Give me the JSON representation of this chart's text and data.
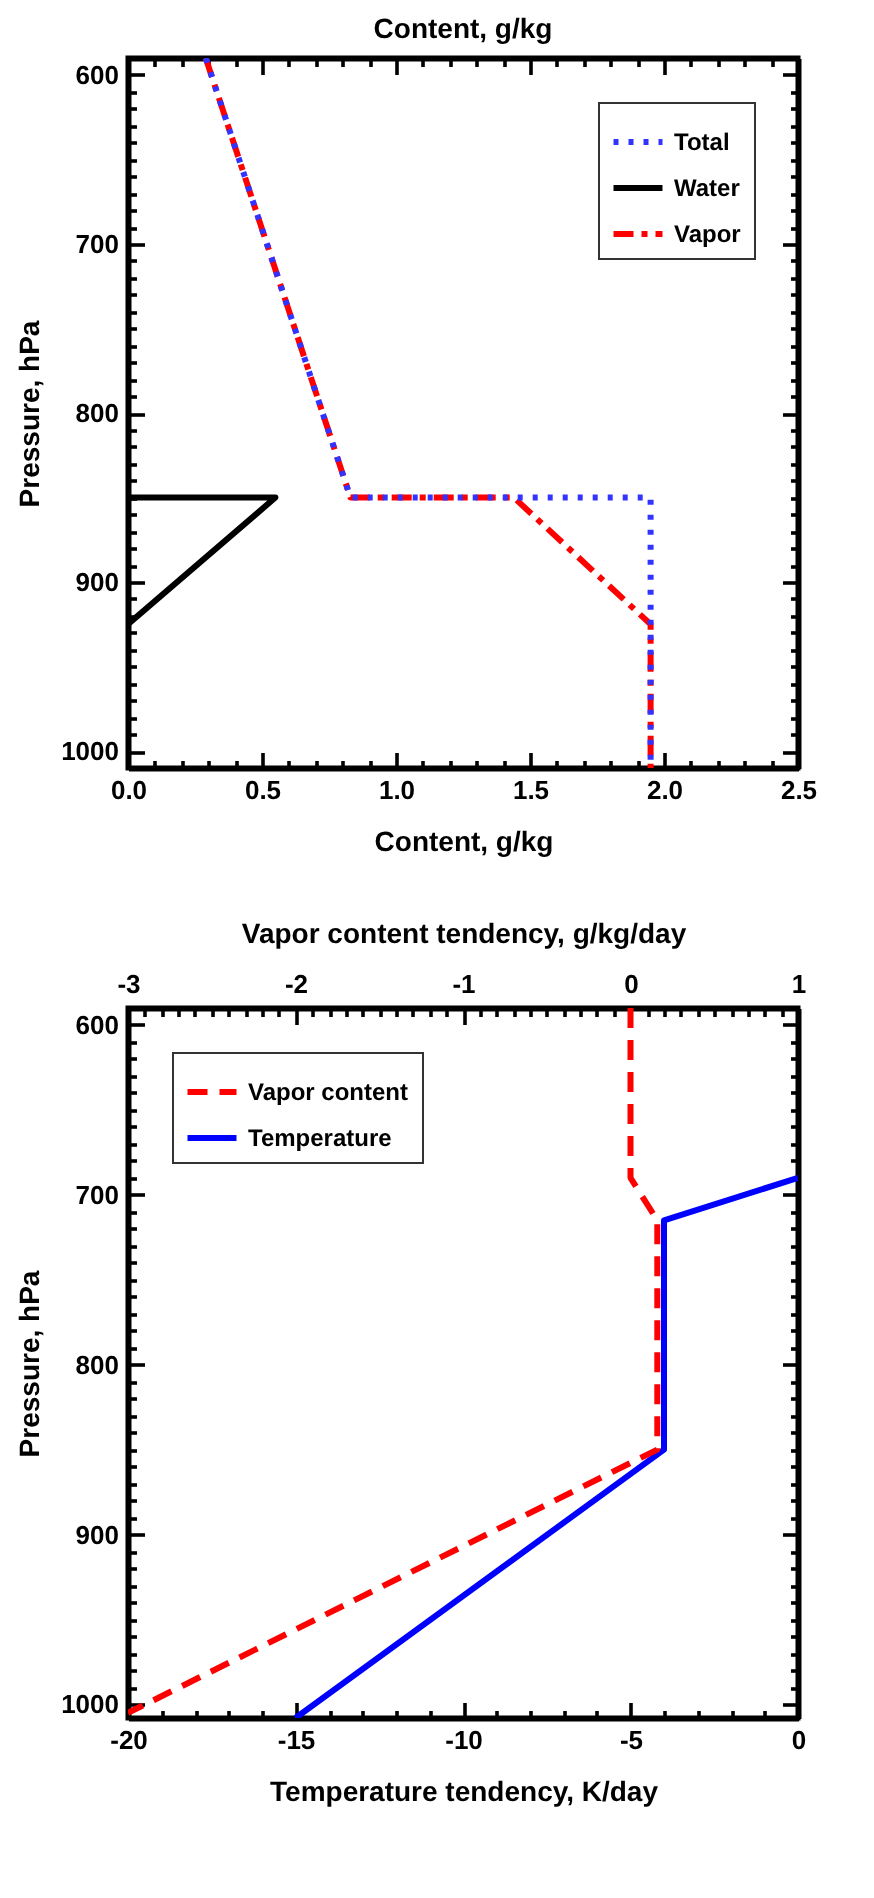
{
  "chart_data": [
    {
      "type": "line",
      "title": "Content, g/kg",
      "xlabel": "Content, g/kg",
      "ylabel": "Pressure, hPa",
      "legend": "top right",
      "xlim": [
        0,
        2.5
      ],
      "xticks": [
        {
          "value": 0,
          "label": "0.0"
        },
        {
          "value": 0.1,
          "label": null
        },
        {
          "value": 0.2,
          "label": null
        },
        {
          "value": 0.3,
          "label": null
        },
        {
          "value": 0.4,
          "label": null
        },
        0.5,
        {
          "value": 0.6,
          "label": null
        },
        {
          "value": 0.7,
          "label": null
        },
        {
          "value": 0.8,
          "label": null
        },
        {
          "value": 0.9,
          "label": null
        },
        {
          "value": 1,
          "label": "1.0"
        },
        {
          "value": 1.1,
          "label": null
        },
        {
          "value": 1.2,
          "label": null
        },
        {
          "value": 1.3,
          "label": null
        },
        {
          "value": 1.4,
          "label": null
        },
        1.5,
        {
          "value": 1.6,
          "label": null
        },
        {
          "value": 1.7,
          "label": null
        },
        {
          "value": 1.8,
          "label": null
        },
        {
          "value": 1.9,
          "label": null
        },
        {
          "value": 2,
          "label": "2.0"
        },
        {
          "value": 2.1,
          "label": null
        },
        {
          "value": 2.2,
          "label": null
        },
        {
          "value": 2.3,
          "label": null
        },
        {
          "value": 2.4,
          "label": null
        },
        2.5
      ],
      "ylim": [
        1010,
        590
      ],
      "yticks": [
        600,
        {
          "value": 610,
          "label": null
        },
        {
          "value": 620,
          "label": null
        },
        {
          "value": 630,
          "label": null
        },
        {
          "value": 640,
          "label": null
        },
        {
          "value": 650,
          "label": null
        },
        {
          "value": 660,
          "label": null
        },
        {
          "value": 670,
          "label": null
        },
        {
          "value": 680,
          "label": null
        },
        {
          "value": 690,
          "label": null
        },
        700,
        {
          "value": 710,
          "label": null
        },
        {
          "value": 720,
          "label": null
        },
        {
          "value": 730,
          "label": null
        },
        {
          "value": 740,
          "label": null
        },
        {
          "value": 750,
          "label": null
        },
        {
          "value": 760,
          "label": null
        },
        {
          "value": 770,
          "label": null
        },
        {
          "value": 780,
          "label": null
        },
        {
          "value": 790,
          "label": null
        },
        800,
        {
          "value": 810,
          "label": null
        },
        {
          "value": 820,
          "label": null
        },
        {
          "value": 830,
          "label": null
        },
        {
          "value": 840,
          "label": null
        },
        {
          "value": 850,
          "label": null
        },
        {
          "value": 860,
          "label": null
        },
        {
          "value": 870,
          "label": null
        },
        {
          "value": 880,
          "label": null
        },
        {
          "value": 890,
          "label": null
        },
        900,
        {
          "value": 910,
          "label": null
        },
        {
          "value": 920,
          "label": null
        },
        {
          "value": 930,
          "label": null
        },
        {
          "value": 940,
          "label": null
        },
        {
          "value": 950,
          "label": null
        },
        {
          "value": 960,
          "label": null
        },
        {
          "value": 970,
          "label": null
        },
        {
          "value": 980,
          "label": null
        },
        {
          "value": 990,
          "label": null
        },
        1000
      ],
      "series": [
        {
          "name": "Total",
          "color": "#3333ff",
          "line_style": "dotted",
          "x": [
            0.29,
            0.83,
            1.95,
            1.95
          ],
          "values": [
            590,
            850,
            850,
            1010
          ]
        },
        {
          "name": "Water",
          "color": "#000000",
          "line_style": "solid",
          "x": [
            0,
            0.55,
            0
          ],
          "values": [
            850,
            850,
            925
          ]
        },
        {
          "name": "Vapor",
          "color": "#ff0000",
          "line_style": "dashdot",
          "x": [
            0.29,
            0.83,
            1.44,
            1.95,
            1.95
          ],
          "values": [
            590,
            850,
            850,
            925,
            1010
          ]
        }
      ]
    },
    {
      "type": "line",
      "xlabel": "Temperature tendency, K/day",
      "x2label": "Vapor content tendency, g/kg/day",
      "ylabel": "Pressure, hPa",
      "legend": "top left",
      "xlim": [
        -20,
        0
      ],
      "xticks": [
        -20,
        {
          "value": -19,
          "label": null
        },
        {
          "value": -18,
          "label": null
        },
        {
          "value": -17,
          "label": null
        },
        {
          "value": -16,
          "label": null
        },
        -15,
        {
          "value": -14,
          "label": null
        },
        {
          "value": -13,
          "label": null
        },
        {
          "value": -12,
          "label": null
        },
        {
          "value": -11,
          "label": null
        },
        -10,
        {
          "value": -9,
          "label": null
        },
        {
          "value": -8,
          "label": null
        },
        {
          "value": -7,
          "label": null
        },
        {
          "value": -6,
          "label": null
        },
        -5,
        {
          "value": -4,
          "label": null
        },
        {
          "value": -3,
          "label": null
        },
        {
          "value": -2,
          "label": null
        },
        {
          "value": -1,
          "label": null
        },
        0
      ],
      "x2lim": [
        -3,
        1
      ],
      "x2ticks": [
        -3,
        {
          "value": -2.9,
          "label": null
        },
        {
          "value": -2.8,
          "label": null
        },
        {
          "value": -2.7,
          "label": null
        },
        {
          "value": -2.6,
          "label": null
        },
        {
          "value": -2.5,
          "label": null
        },
        {
          "value": -2.4,
          "label": null
        },
        {
          "value": -2.3,
          "label": null
        },
        {
          "value": -2.2,
          "label": null
        },
        {
          "value": -2.1,
          "label": null
        },
        -2,
        {
          "value": -1.9,
          "label": null
        },
        {
          "value": -1.8,
          "label": null
        },
        {
          "value": -1.7,
          "label": null
        },
        {
          "value": -1.6,
          "label": null
        },
        {
          "value": -1.5,
          "label": null
        },
        {
          "value": -1.4,
          "label": null
        },
        {
          "value": -1.3,
          "label": null
        },
        {
          "value": -1.2,
          "label": null
        },
        {
          "value": -1.1,
          "label": null
        },
        -1,
        {
          "value": -0.9,
          "label": null
        },
        {
          "value": -0.8,
          "label": null
        },
        {
          "value": -0.7,
          "label": null
        },
        {
          "value": -0.6,
          "label": null
        },
        {
          "value": -0.5,
          "label": null
        },
        {
          "value": -0.4,
          "label": null
        },
        {
          "value": -0.3,
          "label": null
        },
        {
          "value": -0.2,
          "label": null
        },
        {
          "value": -0.1,
          "label": null
        },
        0,
        {
          "value": 0.1,
          "label": null
        },
        {
          "value": 0.2,
          "label": null
        },
        {
          "value": 0.3,
          "label": null
        },
        {
          "value": 0.4,
          "label": null
        },
        {
          "value": 0.5,
          "label": null
        },
        {
          "value": 0.6,
          "label": null
        },
        {
          "value": 0.7,
          "label": null
        },
        {
          "value": 0.8,
          "label": null
        },
        {
          "value": 0.9,
          "label": null
        },
        1
      ],
      "ylim": [
        1008,
        590
      ],
      "yticks": [
        600,
        {
          "value": 610,
          "label": null
        },
        {
          "value": 620,
          "label": null
        },
        {
          "value": 630,
          "label": null
        },
        {
          "value": 640,
          "label": null
        },
        {
          "value": 650,
          "label": null
        },
        {
          "value": 660,
          "label": null
        },
        {
          "value": 670,
          "label": null
        },
        {
          "value": 680,
          "label": null
        },
        {
          "value": 690,
          "label": null
        },
        700,
        {
          "value": 710,
          "label": null
        },
        {
          "value": 720,
          "label": null
        },
        {
          "value": 730,
          "label": null
        },
        {
          "value": 740,
          "label": null
        },
        {
          "value": 750,
          "label": null
        },
        {
          "value": 760,
          "label": null
        },
        {
          "value": 770,
          "label": null
        },
        {
          "value": 780,
          "label": null
        },
        {
          "value": 790,
          "label": null
        },
        800,
        {
          "value": 810,
          "label": null
        },
        {
          "value": 820,
          "label": null
        },
        {
          "value": 830,
          "label": null
        },
        {
          "value": 840,
          "label": null
        },
        {
          "value": 850,
          "label": null
        },
        {
          "value": 860,
          "label": null
        },
        {
          "value": 870,
          "label": null
        },
        {
          "value": 880,
          "label": null
        },
        {
          "value": 890,
          "label": null
        },
        900,
        {
          "value": 910,
          "label": null
        },
        {
          "value": 920,
          "label": null
        },
        {
          "value": 930,
          "label": null
        },
        {
          "value": 940,
          "label": null
        },
        {
          "value": 950,
          "label": null
        },
        {
          "value": 960,
          "label": null
        },
        {
          "value": 970,
          "label": null
        },
        {
          "value": 980,
          "label": null
        },
        {
          "value": 990,
          "label": null
        },
        1000
      ],
      "series": [
        {
          "name": "Vapor content",
          "color": "#ff0000",
          "line_style": "dashed",
          "axis": "x2",
          "x": [
            0,
            0,
            0.16,
            0.16,
            -3
          ],
          "values": [
            590,
            690,
            715,
            850,
            1005
          ]
        },
        {
          "name": "Temperature",
          "color": "#0000ff",
          "line_style": "solid",
          "x": [
            0,
            -4,
            -4,
            -15
          ],
          "values": [
            690,
            715,
            850,
            1008
          ]
        }
      ]
    }
  ]
}
